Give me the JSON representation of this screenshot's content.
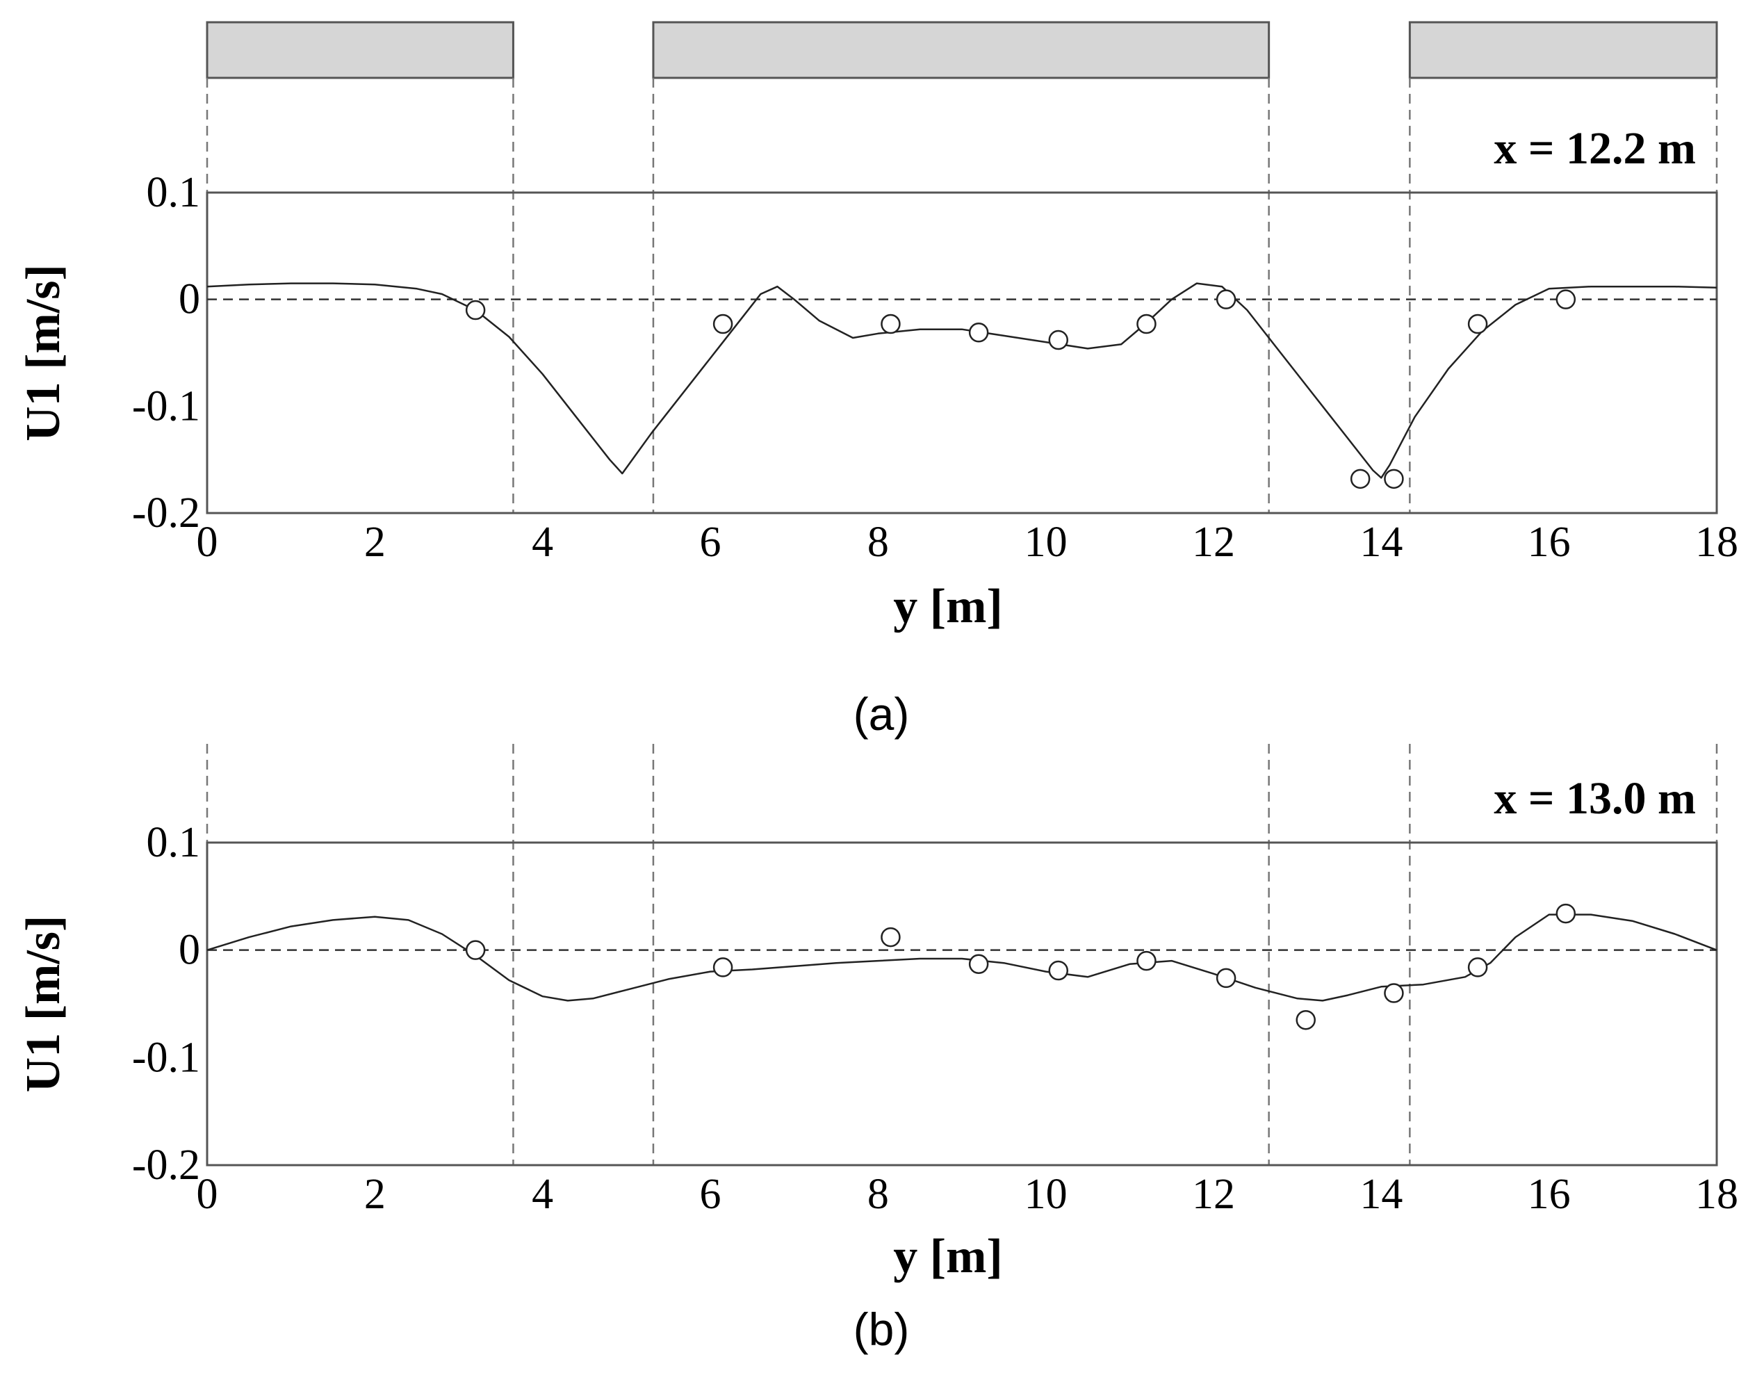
{
  "chart_data": [
    {
      "type": "line",
      "panel": "(a)",
      "annotation": "x = 12.2 m",
      "xlabel": "y [m]",
      "ylabel": "U1 [m/s]",
      "xlim": [
        0,
        18
      ],
      "ylim": [
        -0.2,
        0.1
      ],
      "xticks": [
        "0",
        "2",
        "4",
        "6",
        "8",
        "10",
        "12",
        "14",
        "16",
        "18"
      ],
      "yticks": [
        "0.1",
        "0",
        "-0.1",
        "-0.2"
      ],
      "reference_line_y": 0,
      "region_boundaries": [
        0,
        3.65,
        5.32,
        12.66,
        14.34,
        18
      ],
      "blocks": [
        [
          0,
          3.65
        ],
        [
          5.32,
          12.66
        ],
        [
          14.34,
          18
        ]
      ],
      "series": [
        {
          "kind": "line",
          "x": [
            0,
            0.5,
            1,
            1.5,
            2,
            2.5,
            2.8,
            3.2,
            3.6,
            4.0,
            4.4,
            4.8,
            4.95,
            5.3,
            5.7,
            6.1,
            6.4,
            6.6,
            6.8,
            7.0,
            7.3,
            7.7,
            8.0,
            8.5,
            9.0,
            9.5,
            10.0,
            10.5,
            10.9,
            11.2,
            11.5,
            11.8,
            12.1,
            12.4,
            12.8,
            13.2,
            13.6,
            13.9,
            14.0,
            14.1,
            14.4,
            14.8,
            15.2,
            15.6,
            16.0,
            16.5,
            17.0,
            17.5,
            18.0
          ],
          "y": [
            0.012,
            0.014,
            0.015,
            0.015,
            0.014,
            0.01,
            0.005,
            -0.01,
            -0.035,
            -0.07,
            -0.11,
            -0.15,
            -0.163,
            -0.125,
            -0.085,
            -0.045,
            -0.015,
            0.005,
            0.012,
            0.0,
            -0.02,
            -0.036,
            -0.032,
            -0.028,
            -0.028,
            -0.034,
            -0.04,
            -0.046,
            -0.042,
            -0.022,
            0.0,
            0.015,
            0.012,
            -0.01,
            -0.05,
            -0.09,
            -0.13,
            -0.16,
            -0.167,
            -0.155,
            -0.11,
            -0.065,
            -0.03,
            -0.005,
            0.01,
            0.012,
            0.012,
            0.012,
            0.011
          ]
        },
        {
          "kind": "markers",
          "x": [
            3.2,
            6.15,
            8.15,
            9.2,
            10.15,
            11.2,
            12.15,
            13.75,
            14.15,
            15.15,
            16.2
          ],
          "y": [
            -0.01,
            -0.023,
            -0.023,
            -0.031,
            -0.038,
            -0.023,
            0.0,
            -0.168,
            -0.168,
            -0.023,
            0.0
          ]
        }
      ]
    },
    {
      "type": "line",
      "panel": "(b)",
      "annotation": "x = 13.0 m",
      "xlabel": "y [m]",
      "ylabel": "U1 [m/s]",
      "xlim": [
        0,
        18
      ],
      "ylim": [
        -0.2,
        0.1
      ],
      "xticks": [
        "0",
        "2",
        "4",
        "6",
        "8",
        "10",
        "12",
        "14",
        "16",
        "18"
      ],
      "yticks": [
        "0.1",
        "0",
        "-0.1",
        "-0.2"
      ],
      "reference_line_y": 0,
      "region_boundaries": [
        0,
        3.65,
        5.32,
        12.66,
        14.34,
        18
      ],
      "series": [
        {
          "kind": "line",
          "x": [
            0,
            0.5,
            1,
            1.5,
            2.0,
            2.4,
            2.8,
            3.2,
            3.6,
            4.0,
            4.3,
            4.6,
            5.0,
            5.5,
            6.0,
            6.5,
            7.0,
            7.5,
            8.0,
            8.5,
            9.0,
            9.5,
            10.0,
            10.5,
            11.0,
            11.5,
            12.0,
            12.5,
            13.0,
            13.3,
            13.6,
            14.0,
            14.5,
            15.0,
            15.3,
            15.6,
            16.0,
            16.5,
            17.0,
            17.5,
            18.0
          ],
          "y": [
            0.0,
            0.012,
            0.022,
            0.028,
            0.031,
            0.028,
            0.015,
            -0.005,
            -0.028,
            -0.043,
            -0.047,
            -0.045,
            -0.037,
            -0.027,
            -0.02,
            -0.018,
            -0.015,
            -0.012,
            -0.01,
            -0.008,
            -0.008,
            -0.012,
            -0.02,
            -0.025,
            -0.013,
            -0.01,
            -0.022,
            -0.035,
            -0.045,
            -0.047,
            -0.042,
            -0.034,
            -0.032,
            -0.025,
            -0.012,
            0.012,
            0.033,
            0.033,
            0.027,
            0.015,
            0.0
          ]
        },
        {
          "kind": "markers",
          "x": [
            3.2,
            6.15,
            8.15,
            9.2,
            10.15,
            11.2,
            12.15,
            13.1,
            14.15,
            15.15,
            16.2
          ],
          "y": [
            0.0,
            -0.016,
            0.012,
            -0.013,
            -0.019,
            -0.01,
            -0.026,
            -0.065,
            -0.04,
            -0.016,
            0.034
          ]
        }
      ]
    }
  ]
}
